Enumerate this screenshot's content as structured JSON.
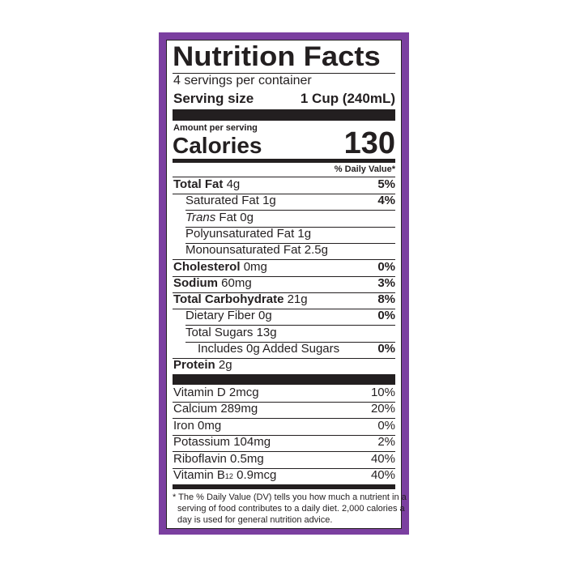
{
  "header": {
    "title": "Nutrition Facts",
    "servings": "4 servings per container",
    "serving_size_label": "Serving size",
    "serving_size_value": "1 Cup (240mL)"
  },
  "calories": {
    "amount_per_serving": "Amount per serving",
    "label": "Calories",
    "value": "130"
  },
  "daily_value_header": "% Daily Value*",
  "nutrients": [
    {
      "name": "Total Fat",
      "amount": "4g",
      "dv": "5%",
      "bold": true,
      "indent": 0
    },
    {
      "name": "Saturated Fat",
      "amount": "1g",
      "dv": "4%",
      "bold": false,
      "indent": 1
    },
    {
      "italic_prefix": "Trans",
      "name": "Fat",
      "amount": "0g",
      "bold": false,
      "indent": 1
    },
    {
      "name": "Polyunsaturated Fat",
      "amount": "1g",
      "bold": false,
      "indent": 1
    },
    {
      "name": "Monounsaturated Fat",
      "amount": "2.5g",
      "bold": false,
      "indent": 1
    },
    {
      "name": "Cholesterol",
      "amount": "0mg",
      "dv": "0%",
      "bold": true,
      "indent": 0
    },
    {
      "name": "Sodium",
      "amount": "60mg",
      "dv": "3%",
      "bold": true,
      "indent": 0
    },
    {
      "name": "Total Carbohydrate",
      "amount": "21g",
      "dv": "8%",
      "bold": true,
      "indent": 0
    },
    {
      "name": "Dietary Fiber",
      "amount": "0g",
      "dv": "0%",
      "bold": false,
      "indent": 1
    },
    {
      "name": "Total Sugars",
      "amount": "13g",
      "bold": false,
      "indent": 1
    },
    {
      "name": "Includes 0g Added Sugars",
      "dv": "0%",
      "bold": false,
      "indent": 2
    },
    {
      "name": "Protein",
      "amount": "2g",
      "bold": true,
      "indent": 0
    }
  ],
  "vitamins": [
    {
      "name": "Vitamin D",
      "amount": "2mcg",
      "dv": "10%"
    },
    {
      "name": "Calcium",
      "amount": "289mg",
      "dv": "20%"
    },
    {
      "name": "Iron",
      "amount": "0mg",
      "dv": "0%"
    },
    {
      "name": "Potassium",
      "amount": "104mg",
      "dv": "2%"
    },
    {
      "name": "Riboflavin",
      "amount": "0.5mg",
      "dv": "40%"
    },
    {
      "name": "Vitamin B",
      "subscript": "12",
      "amount": "0.9mcg",
      "dv": "40%"
    }
  ],
  "footnote": [
    "* The % Daily Value (DV) tells you how much a nutrient in a",
    "serving of food contributes to a daily diet. 2,000 calories a",
    "day is used for general nutrition advice."
  ]
}
